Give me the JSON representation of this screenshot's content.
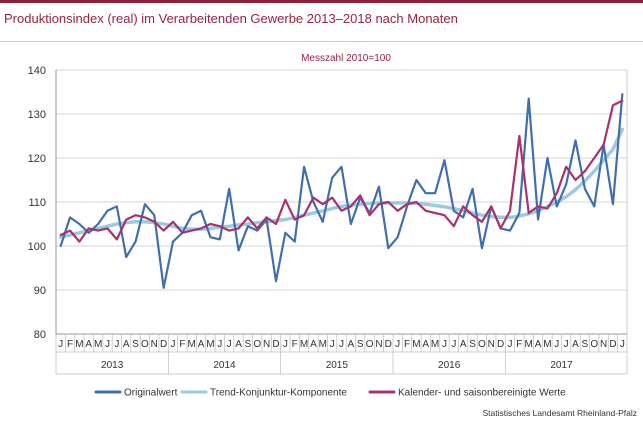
{
  "title": "Produktionsindex (real) im Verarbeitenden Gewerbe 2013–2018 nach Monaten",
  "source": "Statistisches Landesamt Rheinland-Pfalz",
  "colors": {
    "accent": "#8e1f3a",
    "original": "#3f6fb0",
    "trend": "#9ccbe0",
    "adjusted": "#a8326a"
  },
  "chart_data": {
    "type": "line",
    "subtitle": "Messzahl 2010=100",
    "ylim": [
      80,
      140
    ],
    "yticks": [
      80,
      90,
      100,
      110,
      120,
      130,
      140
    ],
    "grid": true,
    "legend_position": "bottom",
    "month_labels": [
      "J",
      "F",
      "M",
      "A",
      "M",
      "J",
      "J",
      "A",
      "S",
      "O",
      "N",
      "D",
      "J",
      "F",
      "M",
      "A",
      "M",
      "J",
      "J",
      "A",
      "S",
      "O",
      "N",
      "D",
      "J",
      "F",
      "M",
      "A",
      "M",
      "J",
      "J",
      "A",
      "S",
      "O",
      "N",
      "D",
      "J",
      "F",
      "M",
      "A",
      "M",
      "J",
      "J",
      "A",
      "S",
      "O",
      "N",
      "D",
      "J",
      "F",
      "M",
      "A",
      "M",
      "J",
      "J",
      "A",
      "S",
      "O",
      "N",
      "D",
      "J"
    ],
    "year_labels": [
      {
        "label": "2013",
        "start": 0,
        "end": 11
      },
      {
        "label": "2014",
        "start": 12,
        "end": 23
      },
      {
        "label": "2015",
        "start": 24,
        "end": 35
      },
      {
        "label": "2016",
        "start": 36,
        "end": 47
      },
      {
        "label": "2017",
        "start": 48,
        "end": 59
      }
    ],
    "series": [
      {
        "name": "Originalwert",
        "color": "#3f6fb0",
        "values": [
          100.0,
          106.5,
          105.0,
          103.0,
          105.0,
          108.0,
          109.0,
          97.5,
          101.0,
          109.5,
          107.0,
          90.5,
          101.0,
          103.0,
          107.0,
          108.0,
          102.0,
          101.5,
          113.0,
          99.0,
          104.5,
          103.5,
          106.0,
          92.0,
          103.0,
          101.0,
          118.0,
          110.0,
          105.5,
          115.5,
          118.0,
          105.0,
          111.0,
          107.5,
          113.5,
          99.5,
          102.0,
          109.0,
          115.0,
          112.0,
          112.0,
          119.5,
          108.0,
          106.5,
          113.0,
          99.5,
          109.0,
          104.0,
          103.5,
          107.5,
          133.5,
          106.0,
          120.0,
          109.0,
          114.0,
          124.0,
          113.0,
          109.0,
          123.0,
          109.5,
          134.5
        ]
      },
      {
        "name": "Trend-Konjunktur-Komponente",
        "color": "#9ccbe0",
        "values": [
          102.0,
          102.5,
          103.0,
          103.5,
          104.0,
          104.5,
          105.0,
          105.3,
          105.5,
          105.5,
          105.3,
          105.0,
          104.5,
          104.0,
          103.8,
          103.8,
          104.0,
          104.3,
          104.5,
          104.8,
          105.0,
          105.3,
          105.5,
          105.8,
          106.0,
          106.5,
          107.0,
          107.5,
          108.0,
          108.5,
          109.0,
          109.3,
          109.5,
          109.7,
          109.8,
          109.8,
          109.8,
          109.8,
          109.7,
          109.5,
          109.2,
          108.9,
          108.5,
          108.0,
          107.5,
          107.0,
          106.7,
          106.5,
          106.5,
          106.8,
          107.3,
          108.0,
          109.0,
          110.0,
          111.2,
          112.8,
          114.8,
          117.0,
          119.5,
          122.0,
          126.5
        ]
      },
      {
        "name": "Kalender- und saisonbereinigte Werte",
        "color": "#a8326a",
        "values": [
          102.5,
          103.5,
          101.0,
          104.0,
          103.5,
          104.0,
          101.5,
          106.0,
          107.0,
          106.5,
          105.5,
          103.5,
          105.5,
          103.0,
          103.5,
          104.0,
          105.0,
          104.5,
          103.5,
          104.0,
          106.5,
          104.0,
          106.5,
          105.0,
          110.5,
          106.0,
          107.0,
          111.0,
          109.5,
          111.0,
          108.0,
          109.0,
          111.5,
          107.0,
          109.5,
          110.0,
          108.0,
          109.5,
          110.0,
          108.0,
          107.5,
          107.0,
          104.5,
          109.0,
          107.0,
          105.5,
          109.0,
          104.0,
          108.0,
          125.0,
          107.5,
          109.0,
          108.5,
          112.0,
          118.0,
          115.0,
          117.0,
          120.0,
          123.0,
          132.0,
          133.0
        ]
      }
    ]
  }
}
